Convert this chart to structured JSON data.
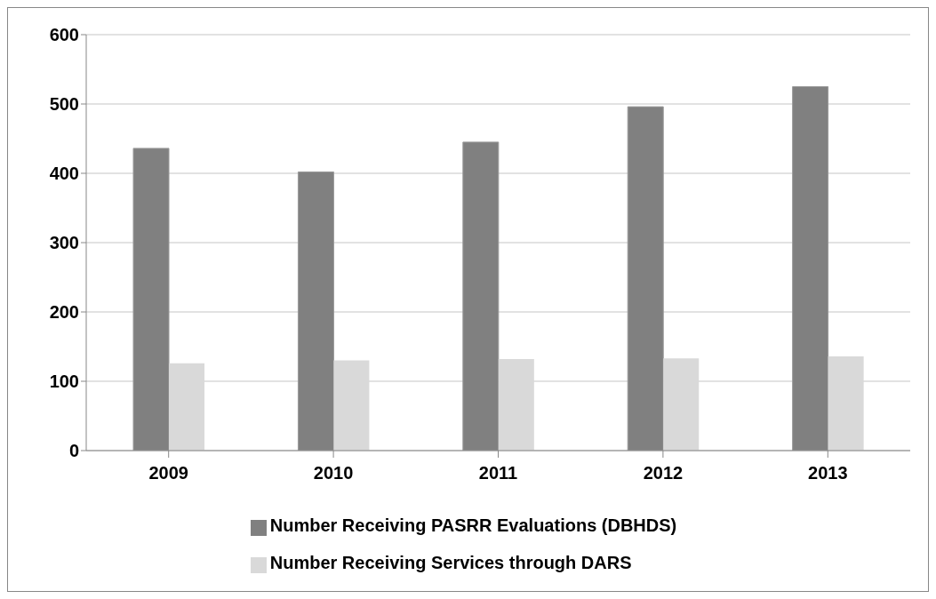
{
  "chart_data": {
    "type": "bar",
    "categories": [
      "2009",
      "2010",
      "2011",
      "2012",
      "2013"
    ],
    "series": [
      {
        "name": "Number Receiving PASRR Evaluations (DBHDS)",
        "color": "#808080",
        "values": [
          436,
          402,
          445,
          496,
          525
        ]
      },
      {
        "name": "Number Receiving Services through DARS",
        "color": "#d9d9d9",
        "values": [
          126,
          130,
          132,
          133,
          136
        ]
      }
    ],
    "ylim": [
      0,
      600
    ],
    "yticks": [
      0,
      100,
      200,
      300,
      400,
      500,
      600
    ],
    "grid": "y",
    "legend": "bottom"
  }
}
